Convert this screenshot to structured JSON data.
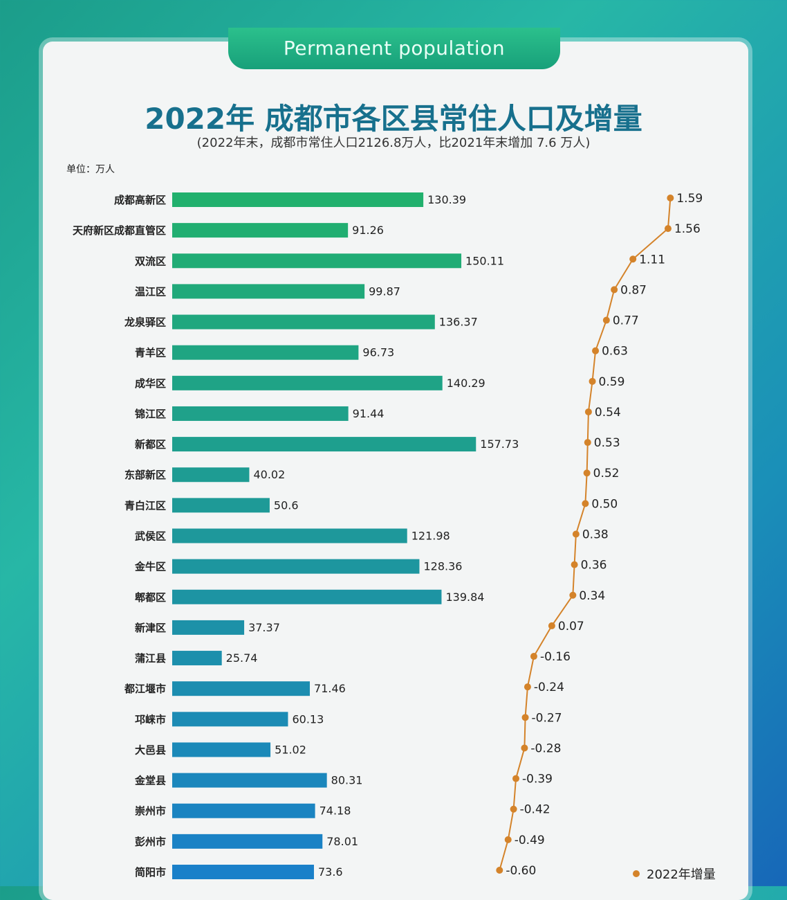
{
  "header": {
    "tab_label": "Permanent population"
  },
  "chart_data": {
    "type": "bar",
    "title": "2022年 成都市各区县常住人口及增量",
    "subtitle": "(2022年末，成都市常住人口2126.8万人，比2021年末增加 7.6 万人)",
    "unit_label": "单位：万人",
    "categories": [
      "成都高新区",
      "天府新区成都直管区",
      "双流区",
      "温江区",
      "龙泉驿区",
      "青羊区",
      "成华区",
      "锦江区",
      "新都区",
      "东部新区",
      "青白江区",
      "武侯区",
      "金牛区",
      "郫都区",
      "新津区",
      "蒲江县",
      "都江堰市",
      "邛崃市",
      "大邑县",
      "金堂县",
      "崇州市",
      "彭州市",
      "简阳市"
    ],
    "population": {
      "values": [
        "130.39",
        "91.26",
        "150.11",
        "99.87",
        "136.37",
        "96.73",
        "140.29",
        "91.44",
        "157.73",
        "40.02",
        "50.6",
        "121.98",
        "128.36",
        "139.84",
        "37.37",
        "25.74",
        "71.46",
        "60.13",
        "51.02",
        "80.31",
        "74.18",
        "78.01",
        "73.6"
      ],
      "color_start": "#21b06d",
      "color_end": "#1a80c9"
    },
    "increase": {
      "name": "2022年增量",
      "type": "line",
      "color": "#d4832a",
      "values": [
        "1.59",
        "1.56",
        "1.11",
        "0.87",
        "0.77",
        "0.63",
        "0.59",
        "0.54",
        "0.53",
        "0.52",
        "0.50",
        "0.38",
        "0.36",
        "0.34",
        "0.07",
        "-0.16",
        "-0.24",
        "-0.27",
        "-0.28",
        "-0.39",
        "-0.42",
        "-0.49",
        "-0.60"
      ]
    },
    "legend_position": "bottom-right",
    "grid": false
  }
}
